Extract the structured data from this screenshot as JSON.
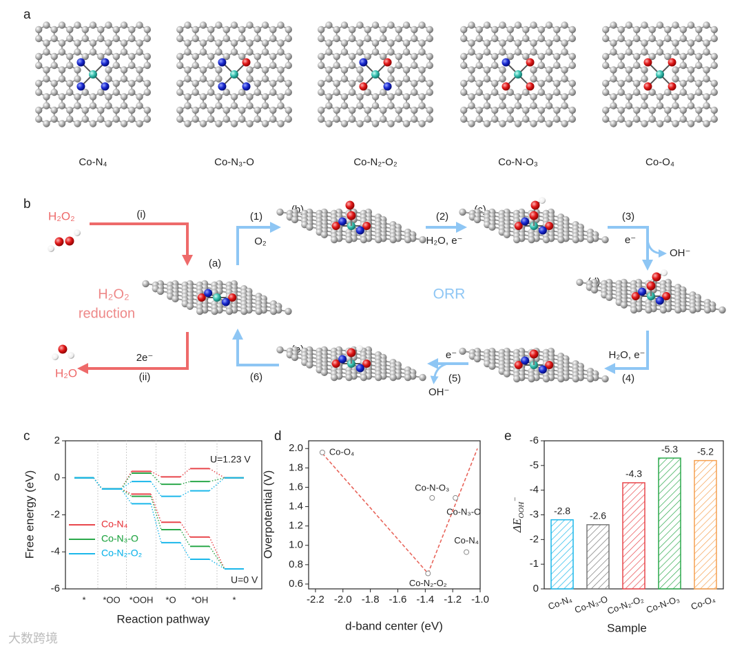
{
  "panel_a": {
    "label": "a",
    "structures": [
      "Co-N₄",
      "Co-N₃-O",
      "Co-N₂-O₂",
      "Co-N-O₃",
      "Co-O₄"
    ]
  },
  "panel_b": {
    "label": "b",
    "h2o2": "H₂O₂",
    "step_i": "(i)",
    "h2o2_reduction": [
      "H₂O₂",
      "reduction"
    ],
    "step_ii": "(ii)",
    "electrons_ii": "2e⁻",
    "h2o": "H₂O",
    "orr": "ORR",
    "states": [
      "(a)",
      "(b)",
      "(c)",
      "(d)",
      "(e)"
    ],
    "steps": [
      {
        "number": "(1)",
        "reagent": "O₂"
      },
      {
        "number": "(2)",
        "reagent": "H₂O, e⁻"
      },
      {
        "number": "(3)",
        "reagent": "e⁻",
        "product": "OH⁻"
      },
      {
        "number": "(4)",
        "reagent": "H₂O, e⁻"
      },
      {
        "number": "(5)",
        "reagent": "e⁻",
        "product": "OH⁻"
      },
      {
        "number": "(6)"
      }
    ]
  },
  "chart_data": [
    {
      "type": "energy_levels",
      "panel": "c",
      "ylabel": "Free energy (eV)",
      "xlabel": "Reaction pathway",
      "categories": [
        "*",
        "*OO",
        "*OOH",
        "*O",
        "*OH",
        "*"
      ],
      "ylim": [
        -6,
        2
      ],
      "yticks": [
        -6,
        -4,
        -2,
        0,
        2
      ],
      "potentials": [
        "U=1.23 V",
        "U=0 V"
      ],
      "series": [
        {
          "name": "Co-N₄",
          "color": "#e8454a",
          "values": [
            0,
            -0.6,
            0.35,
            0.05,
            0.5,
            0
          ],
          "values_u0": [
            0,
            -0.6,
            -0.88,
            -2.4,
            -3.2,
            -4.92
          ]
        },
        {
          "name": "Co-N₃-O",
          "color": "#2aa84a",
          "values": [
            0,
            -0.6,
            0.25,
            -0.35,
            -0.2,
            0
          ],
          "values_u0": [
            0,
            -0.6,
            -1.0,
            -2.8,
            -3.7,
            -4.92
          ]
        },
        {
          "name": "Co-N₂-O₂",
          "color": "#1ab7ea",
          "values": [
            0,
            -0.6,
            -0.2,
            -1.0,
            -0.7,
            0
          ],
          "values_u0": [
            0,
            -0.6,
            -1.4,
            -3.5,
            -4.4,
            -4.92
          ]
        }
      ]
    },
    {
      "type": "scatter",
      "panel": "d",
      "xlabel": "d-band center (eV)",
      "ylabel": "Overpotential (V)",
      "x": [
        -2.15,
        -1.35,
        -1.18,
        -1.1,
        -1.38
      ],
      "values": [
        1.96,
        1.49,
        1.49,
        0.93,
        0.71
      ],
      "point_labels": [
        "Co-O₄",
        "Co-N-O₃",
        "Co-N₃-O",
        "Co-N₄",
        "Co-N₂-O₂"
      ],
      "color": "#888888",
      "fit": {
        "x": [
          -2.15,
          -1.38,
          -1.02
        ],
        "values": [
          1.95,
          0.71,
          2.0
        ],
        "color": "#e8645a"
      },
      "xlim": [
        -2.25,
        -1.0
      ],
      "xticks": [
        {
          "value": -2.2,
          "label": "-2.2"
        },
        {
          "value": -2.0,
          "label": "-2.0"
        },
        {
          "value": -1.8,
          "label": "-1.8"
        },
        {
          "value": -1.6,
          "label": "-1.6"
        },
        {
          "value": -1.4,
          "label": "-1.4"
        },
        {
          "value": -1.2,
          "label": "-1.2"
        },
        {
          "value": -1.0,
          "label": "-1.0"
        }
      ],
      "ylim": [
        0.55,
        2.08
      ],
      "yticks": [
        {
          "value": 0.6,
          "label": "0.6"
        },
        {
          "value": 0.8,
          "label": "0.8"
        },
        {
          "value": 1.0,
          "label": "1.0"
        },
        {
          "value": 1.2,
          "label": "1.2"
        },
        {
          "value": 1.4,
          "label": "1.4"
        },
        {
          "value": 1.6,
          "label": "1.6"
        },
        {
          "value": 1.8,
          "label": "1.8"
        },
        {
          "value": 2.0,
          "label": "2.0"
        }
      ]
    },
    {
      "type": "bar",
      "panel": "e",
      "xlabel": "Sample",
      "ylabel": [
        "ΔE",
        "OOH",
        "−"
      ],
      "categories": [
        "Co-N₄",
        "Co-N₃-O",
        "Co-N₂-O₂",
        "Co-N-O₃",
        "Co-O₄"
      ],
      "values": [
        -2.8,
        -2.6,
        -4.3,
        -5.3,
        -5.2
      ],
      "colors": [
        "#1ab7ea",
        "#777777",
        "#e8454a",
        "#2aa84a",
        "#f5a050"
      ],
      "ylim": [
        0,
        -6
      ],
      "yticks": [
        0,
        -1,
        -2,
        -3,
        -4,
        -5,
        -6
      ]
    }
  ],
  "watermark": "大数跨境"
}
